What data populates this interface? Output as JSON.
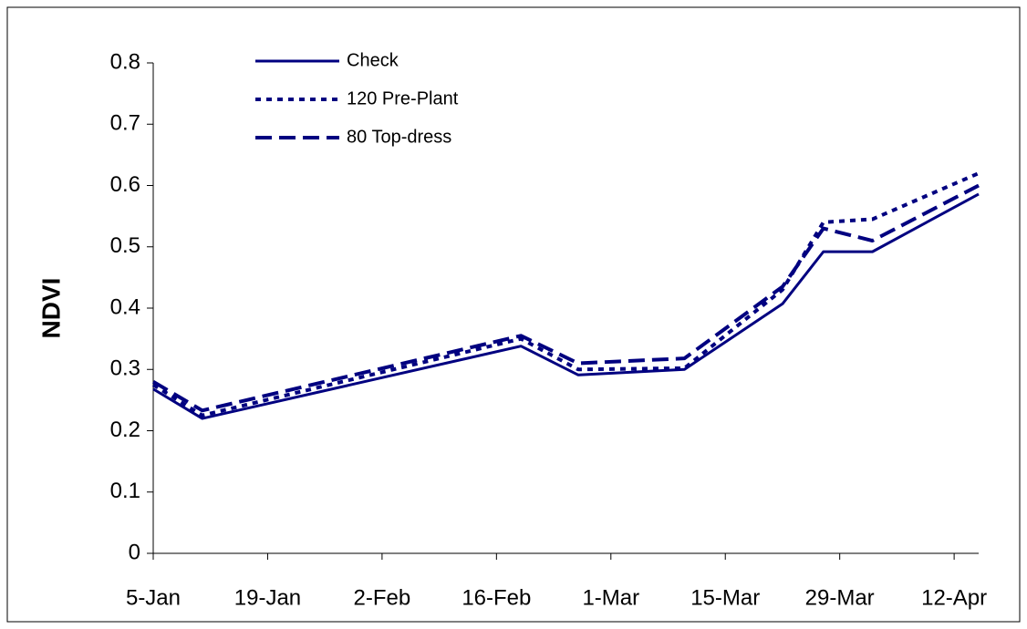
{
  "chart_data": {
    "type": "line",
    "y_label": "NDVI",
    "x": [
      "5-Jan",
      "11-Jan",
      "19-Feb",
      "26-Feb",
      "10-Mar",
      "22-Mar",
      "27-Mar",
      "2-Apr",
      "15-Apr"
    ],
    "xlim": [
      "5-Jan",
      "15-Apr"
    ],
    "xticks": [
      "5-Jan",
      "19-Jan",
      "2-Feb",
      "16-Feb",
      "1-Mar",
      "15-Mar",
      "29-Mar",
      "12-Apr"
    ],
    "ylim": [
      0,
      0.8
    ],
    "yticks": [
      0,
      0.1,
      0.2,
      0.3,
      0.4,
      0.5,
      0.6,
      0.7,
      0.8
    ],
    "grid": false,
    "legend": "top-left",
    "series": [
      {
        "name": "Check",
        "color": "#000080",
        "style": "solid",
        "values": [
          0.268,
          0.22,
          0.338,
          0.291,
          0.3,
          0.407,
          0.492,
          0.492,
          0.586
        ]
      },
      {
        "name": "120 Pre-Plant",
        "color": "#000080",
        "style": "dotted",
        "values": [
          0.275,
          0.225,
          0.35,
          0.3,
          0.302,
          0.43,
          0.54,
          0.545,
          0.62
        ]
      },
      {
        "name": "80 Top-dress",
        "color": "#000080",
        "style": "dashed",
        "values": [
          0.28,
          0.233,
          0.355,
          0.31,
          0.318,
          0.435,
          0.53,
          0.51,
          0.6
        ]
      }
    ]
  }
}
